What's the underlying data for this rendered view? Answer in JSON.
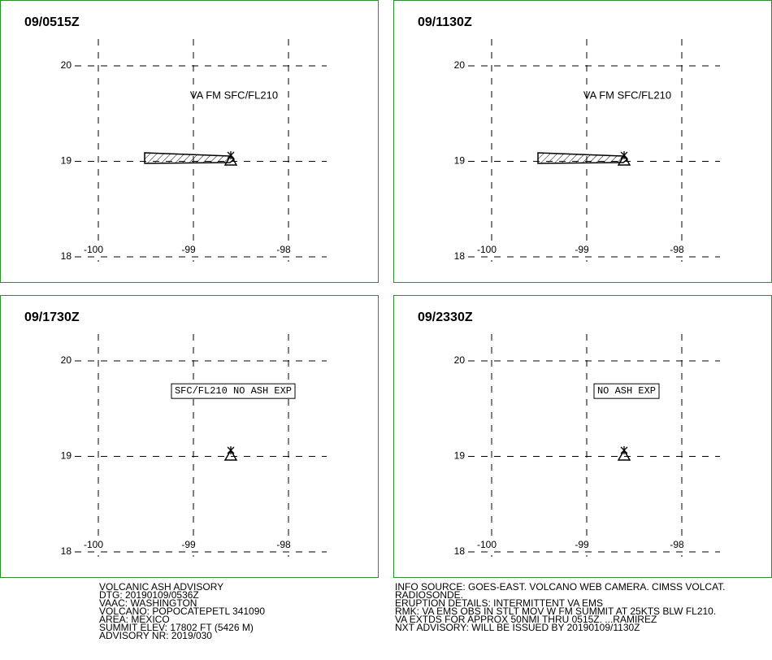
{
  "panels": [
    {
      "time": "09/0515Z",
      "label": "VA FM SFC/FL210",
      "label_boxed": false,
      "ash_area": true
    },
    {
      "time": "09/1130Z",
      "label": "VA FM SFC/FL210",
      "label_boxed": false,
      "ash_area": true
    },
    {
      "time": "09/1730Z",
      "label": "SFC/FL210 NO ASH EXP",
      "label_boxed": true,
      "ash_area": false
    },
    {
      "time": "09/2330Z",
      "label": "NO ASH EXP",
      "label_boxed": true,
      "ash_area": false
    }
  ],
  "xticks": [
    -100,
    -99,
    -98
  ],
  "yticks": [
    18,
    19,
    20
  ],
  "advisory_left": [
    "VOLCANIC ASH ADVISORY",
    "DTG: 20190109/0536Z",
    "VAAC: WASHINGTON",
    "VOLCANO: POPOCATEPETL 341090",
    "AREA: MEXICO",
    "SUMMIT ELEV: 17802 FT (5426 M)",
    "ADVISORY NR: 2019/030"
  ],
  "advisory_right": [
    "INFO SOURCE: GOES-EAST. VOLCANO WEB CAMERA. CIMSS VOLCAT.",
    "RADIOSONDE.",
    "ERUPTION DETAILS: INTERMITTENT VA EMS",
    "RMK: VA EMS OBS IN STLT MOV W FM SUMMIT AT 25KTS BLW FL210.",
    "VA EXTDS FOR APPROX 50NMI THRU 0515Z. ...RAMIREZ",
    "NXT ADVISORY: WILL BE ISSUED BY 20190109/1130Z"
  ]
}
